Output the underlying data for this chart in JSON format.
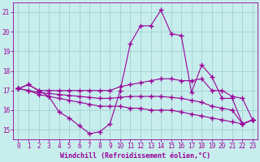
{
  "xlabel": "Windchill (Refroidissement éolien,°C)",
  "xlim": [
    -0.5,
    23.5
  ],
  "ylim": [
    14.5,
    21.5
  ],
  "yticks": [
    15,
    16,
    17,
    18,
    19,
    20,
    21
  ],
  "xticks": [
    0,
    1,
    2,
    3,
    4,
    5,
    6,
    7,
    8,
    9,
    10,
    11,
    12,
    13,
    14,
    15,
    16,
    17,
    18,
    19,
    20,
    21,
    22,
    23
  ],
  "bg_color": "#c8eded",
  "line_color": "#990099",
  "grid_color": "#99cccc",
  "line_width": 0.8,
  "marker": "+",
  "markersize": 4,
  "markeredgewidth": 1.0,
  "curves": [
    [
      17.1,
      17.3,
      17.0,
      16.7,
      15.9,
      15.6,
      15.2,
      14.8,
      14.9,
      15.3,
      17.0,
      19.4,
      20.3,
      20.3,
      21.1,
      19.9,
      19.8,
      16.9,
      18.3,
      17.7,
      16.6,
      16.6,
      15.3,
      15.5
    ],
    [
      17.1,
      17.3,
      17.0,
      17.0,
      17.0,
      17.0,
      17.0,
      17.0,
      17.0,
      17.0,
      17.2,
      17.3,
      17.4,
      17.5,
      17.6,
      17.6,
      17.5,
      17.5,
      17.6,
      17.0,
      17.0,
      16.7,
      16.6,
      15.5
    ],
    [
      17.1,
      17.0,
      16.9,
      16.85,
      16.8,
      16.75,
      16.7,
      16.65,
      16.6,
      16.6,
      16.65,
      16.7,
      16.7,
      16.7,
      16.7,
      16.65,
      16.6,
      16.5,
      16.4,
      16.2,
      16.1,
      16.0,
      15.3,
      15.5
    ],
    [
      17.1,
      17.0,
      16.8,
      16.7,
      16.6,
      16.5,
      16.4,
      16.3,
      16.2,
      16.2,
      16.2,
      16.1,
      16.1,
      16.0,
      16.0,
      16.0,
      15.9,
      15.8,
      15.7,
      15.6,
      15.5,
      15.4,
      15.3,
      15.5
    ]
  ]
}
